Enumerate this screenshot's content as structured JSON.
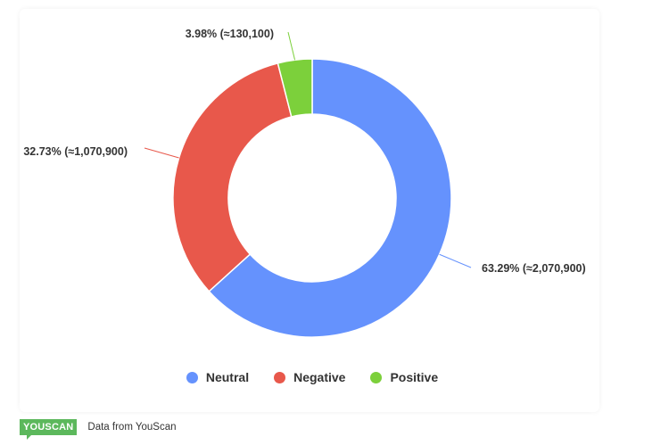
{
  "chart_data": {
    "type": "pie",
    "donut": true,
    "title": "",
    "series": [
      {
        "name": "Neutral",
        "percent": 63.29,
        "count": 2070900,
        "label": "63.29% (≈2,070,900)",
        "color": "#6592fd"
      },
      {
        "name": "Negative",
        "percent": 32.73,
        "count": 1070900,
        "label": "32.73% (≈1,070,900)",
        "color": "#e8584b"
      },
      {
        "name": "Positive",
        "percent": 3.98,
        "count": 130100,
        "label": "3.98% (≈130,100)",
        "color": "#7cd03b"
      }
    ],
    "legend_position": "bottom"
  },
  "legend": {
    "items": [
      {
        "label": "Neutral",
        "color": "#6592fd"
      },
      {
        "label": "Negative",
        "color": "#e8584b"
      },
      {
        "label": "Positive",
        "color": "#7cd03b"
      }
    ]
  },
  "footer": {
    "logo_text": "YOUSCAN",
    "source_text": "Data from YouScan"
  }
}
